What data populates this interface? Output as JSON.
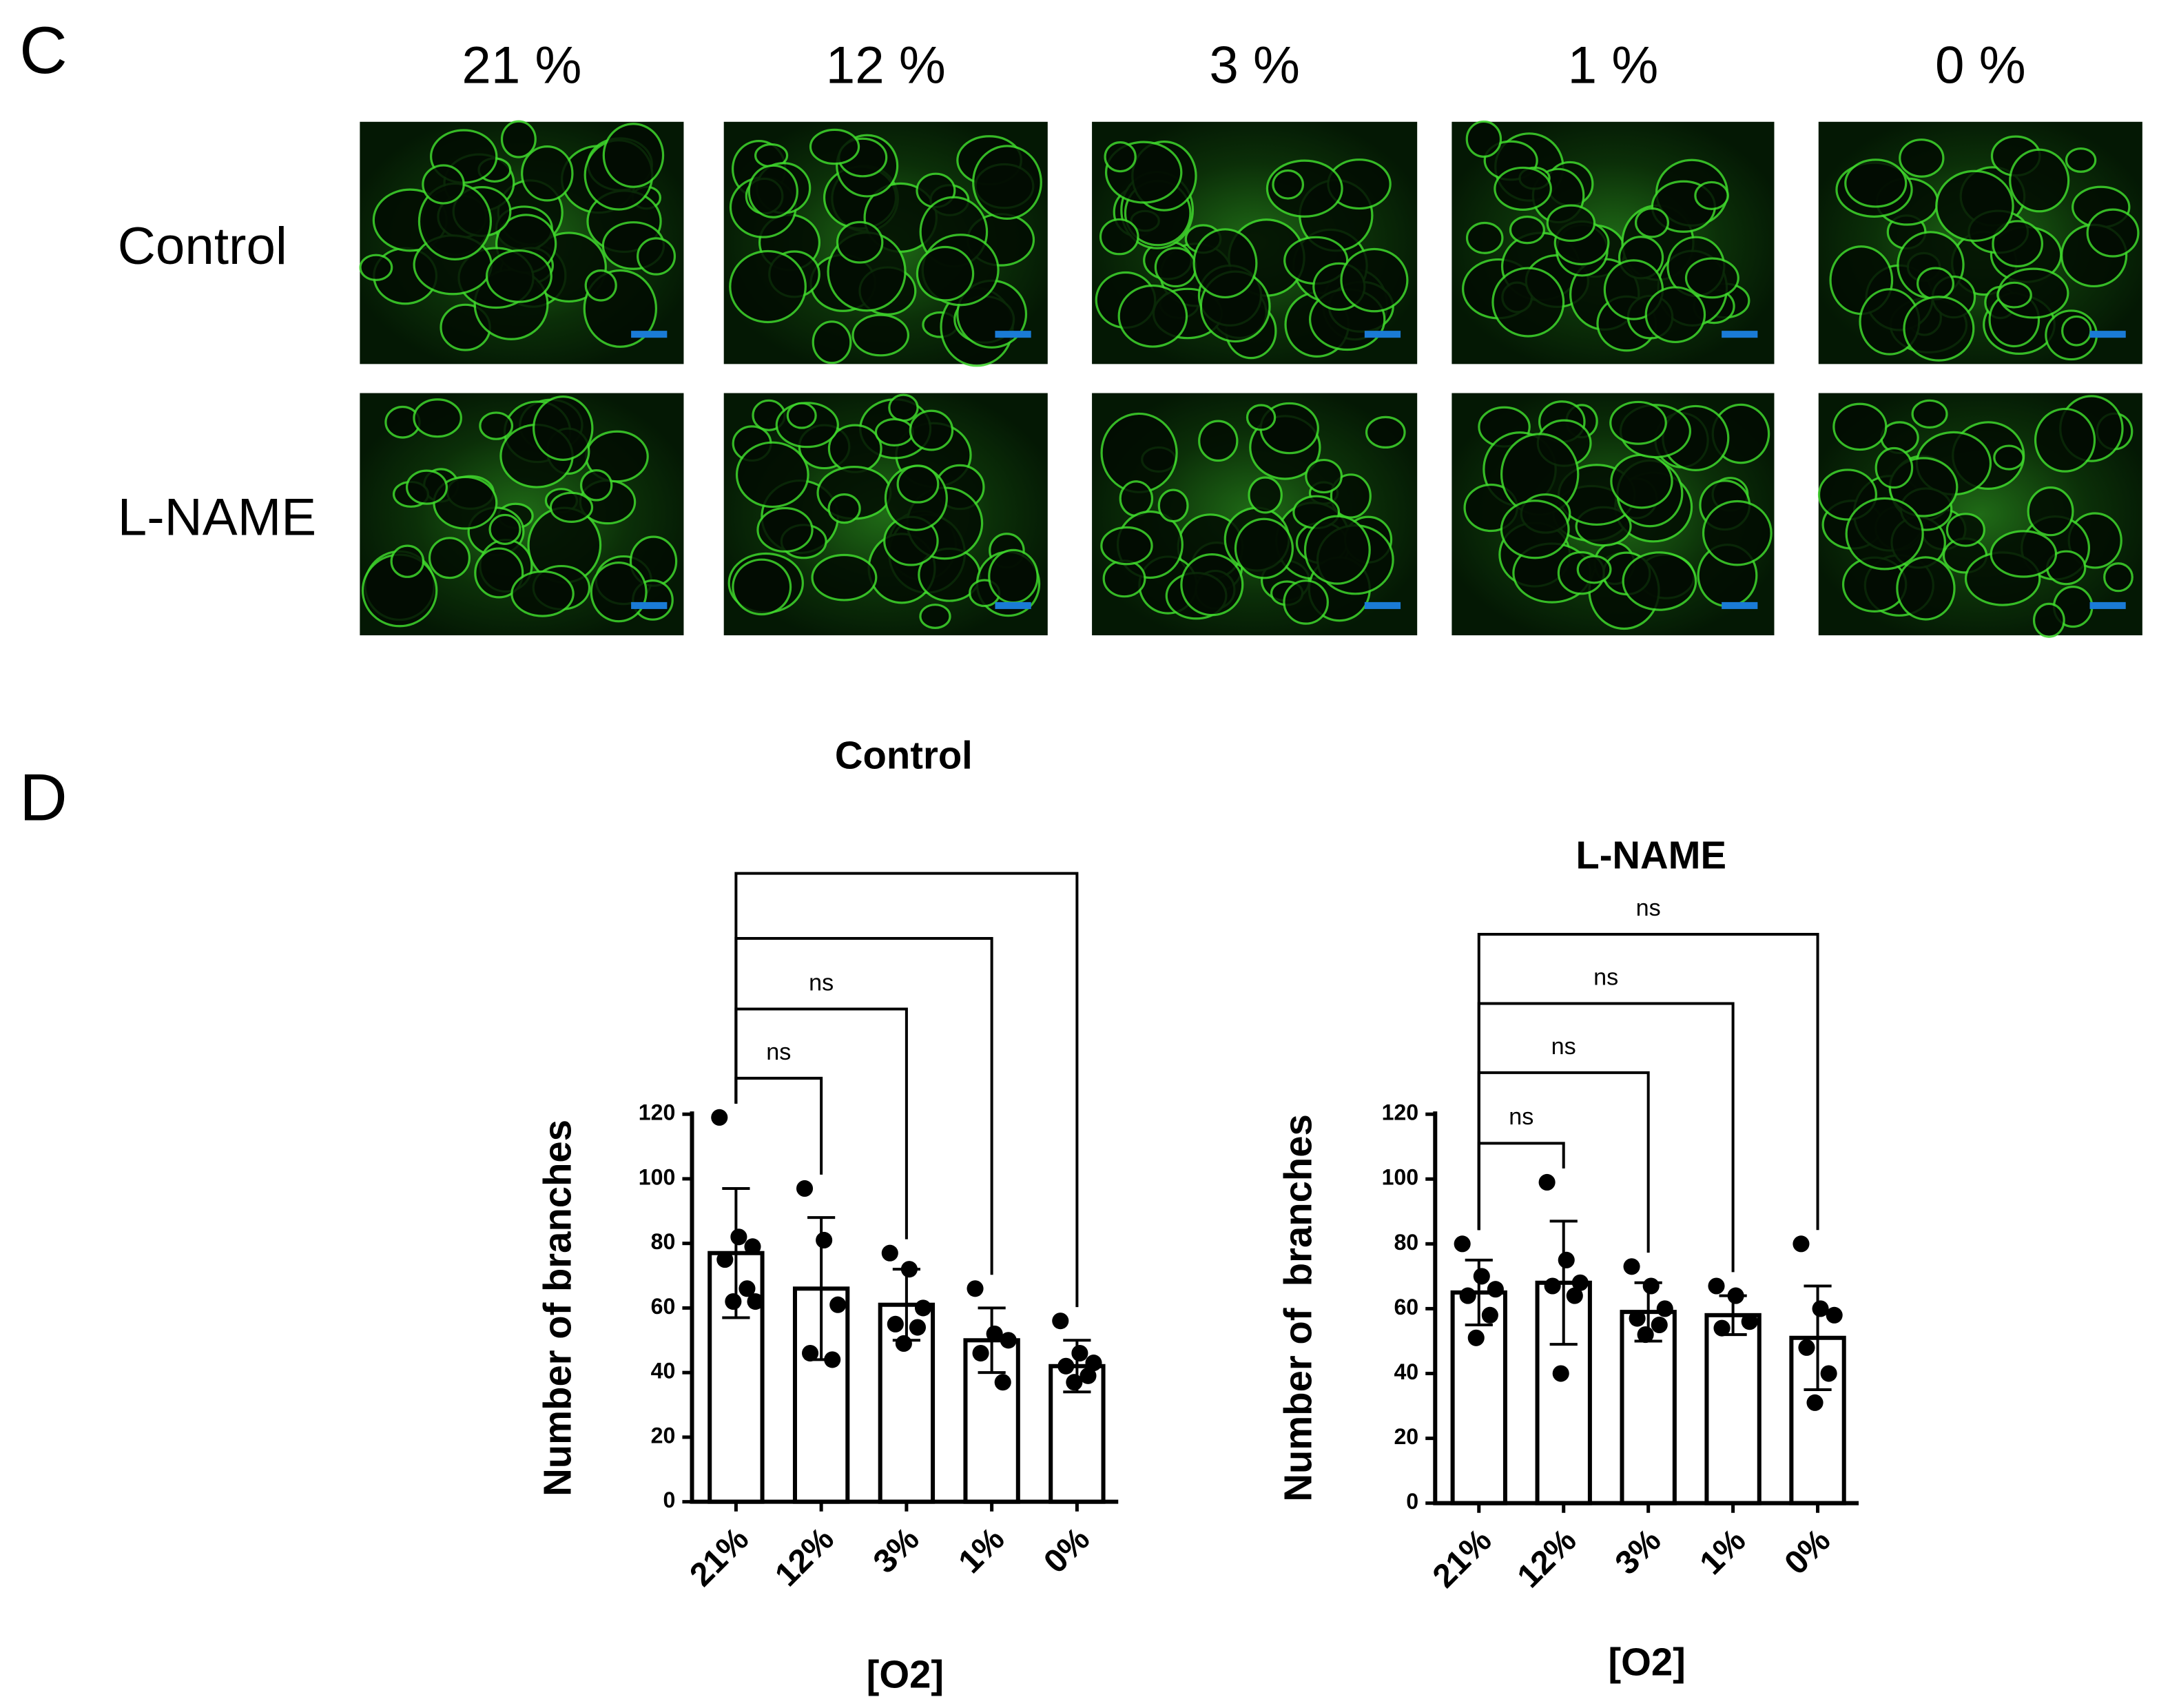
{
  "panels": {
    "c": {
      "label": "C",
      "columns": [
        "21 %",
        "12 %",
        "3 %",
        "1 %",
        "0 %"
      ],
      "rows": [
        "Control",
        "L-NAME"
      ]
    },
    "d": {
      "label": "D"
    }
  },
  "chart_data": [
    {
      "type": "bar",
      "title": "Control",
      "categories": [
        "21%",
        "12%",
        "3%",
        "1%",
        "0%"
      ],
      "values": [
        77,
        66,
        61,
        50,
        42
      ],
      "errors": [
        20,
        22,
        11,
        10,
        8
      ],
      "points": [
        [
          119,
          82,
          79,
          75,
          66,
          62,
          62
        ],
        [
          97,
          81,
          61,
          46,
          44
        ],
        [
          77,
          72,
          60,
          55,
          54,
          49
        ],
        [
          66,
          52,
          50,
          46,
          37
        ],
        [
          56,
          46,
          43,
          42,
          39,
          37
        ]
      ],
      "color": "#ffffff",
      "ylim": [
        0,
        120
      ],
      "yticks": [
        0,
        20,
        40,
        60,
        80,
        100,
        120
      ],
      "x_label": "[O2]",
      "y_label": "Number of branches",
      "annotations": [
        "ns",
        "ns"
      ]
    },
    {
      "type": "bar",
      "title": "L-NAME",
      "categories": [
        "21%",
        "12%",
        "3%",
        "1%",
        "0%"
      ],
      "values": [
        65,
        68,
        59,
        58,
        51
      ],
      "errors": [
        10,
        19,
        9,
        6,
        16
      ],
      "points": [
        [
          80,
          70,
          66,
          64,
          58,
          51
        ],
        [
          99,
          75,
          68,
          67,
          64,
          40
        ],
        [
          73,
          67,
          60,
          57,
          55,
          52
        ],
        [
          67,
          64,
          56,
          54
        ],
        [
          80,
          60,
          58,
          48,
          40,
          31
        ]
      ],
      "color": "#ffffff",
      "ylim": [
        0,
        120
      ],
      "yticks": [
        0,
        20,
        40,
        60,
        80,
        100,
        120
      ],
      "x_label": "[O2]",
      "y_label": "Number of  branches",
      "annotations": [
        "ns",
        "ns",
        "ns",
        "ns"
      ]
    }
  ]
}
